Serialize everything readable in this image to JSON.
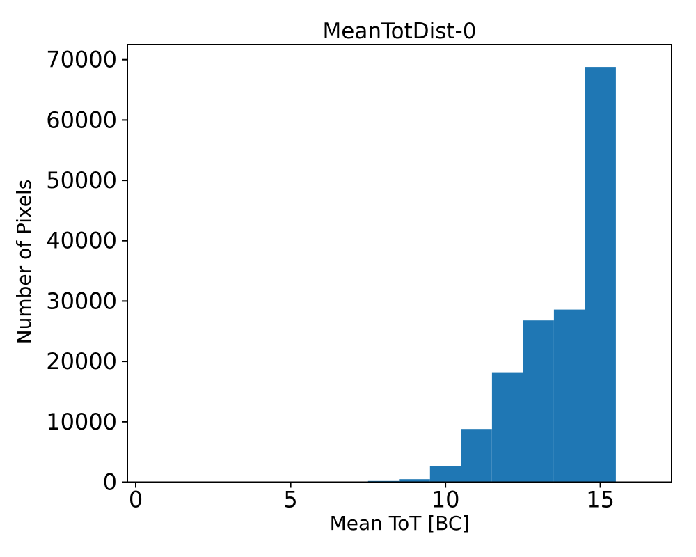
{
  "figure": {
    "background": "#ffffff"
  },
  "chart_data": {
    "type": "bar",
    "subtype": "histogram",
    "title": "MeanTotDist-0",
    "xlabel": "Mean ToT [BC]",
    "ylabel": "Number of Pixels",
    "bar_color": "#1f77b4",
    "axis_color": "#000000",
    "background_color": "#ffffff",
    "grid": false,
    "legend": null,
    "bin_width": 1,
    "bin_centers": [
      8,
      9,
      10,
      11,
      12,
      13,
      14,
      15
    ],
    "counts": [
      200,
      500,
      2700,
      8800,
      18100,
      26800,
      28600,
      68800
    ],
    "xticks": [
      0,
      5,
      10,
      15
    ],
    "yticks": [
      0,
      10000,
      20000,
      30000,
      40000,
      50000,
      60000,
      70000
    ],
    "xlim": [
      -0.27,
      17.3
    ],
    "ylim": [
      0,
      72500
    ]
  }
}
